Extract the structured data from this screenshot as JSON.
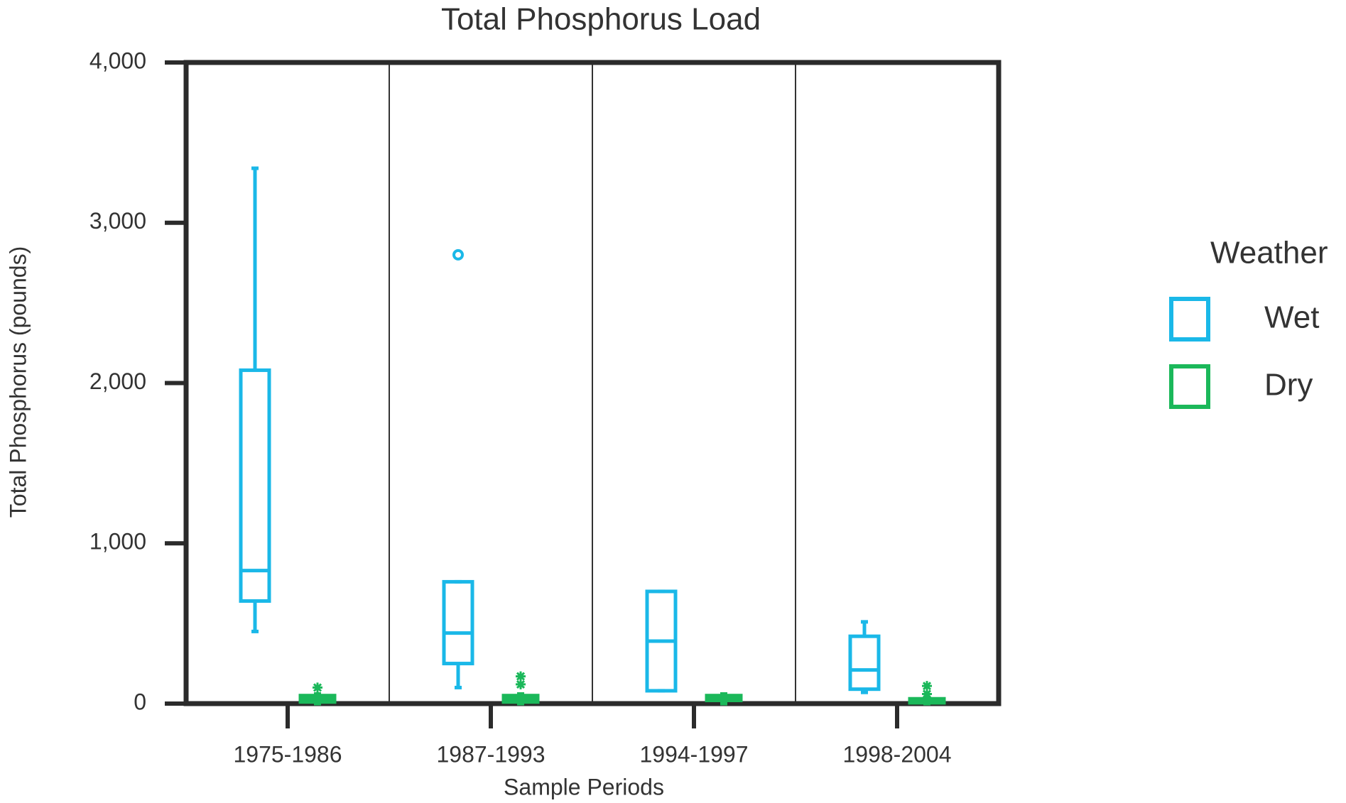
{
  "chart_data": {
    "type": "box",
    "title": "Total Phosphorus Load",
    "x_label": "Sample Periods",
    "y_label": "Total Phosphorus (pounds)",
    "categories": [
      "1975-1986",
      "1987-1993",
      "1994-1997",
      "1998-2004"
    ],
    "ylim": [
      0,
      4000
    ],
    "yticks": [
      0,
      {
        "value": 1000,
        "label": "1,000"
      },
      {
        "value": 2000,
        "label": "2,000"
      },
      {
        "value": 3000,
        "label": "3,000"
      },
      {
        "value": 4000,
        "label": "4,000"
      }
    ],
    "legend_title": "Weather",
    "legend_position": "right",
    "series": [
      {
        "name": "Wet",
        "color": "#1ab8e8",
        "outlier_marker": "circle",
        "boxes": [
          {
            "low": 450,
            "q1": 640,
            "median": 830,
            "q3": 2080,
            "high": 3340,
            "outliers": []
          },
          {
            "low": 100,
            "q1": 250,
            "median": 440,
            "q3": 760,
            "high": 760,
            "outliers": [
              2800
            ]
          },
          {
            "low": 80,
            "q1": 80,
            "median": 390,
            "q3": 700,
            "high": 700,
            "outliers": []
          },
          {
            "low": 70,
            "q1": 90,
            "median": 210,
            "q3": 420,
            "high": 510,
            "outliers": []
          }
        ]
      },
      {
        "name": "Dry",
        "color": "#1bb85a",
        "outlier_marker": "asterisk",
        "boxes": [
          {
            "low": 0,
            "q1": 10,
            "median": 30,
            "q3": 50,
            "high": 60,
            "outliers": [
              100
            ]
          },
          {
            "low": 0,
            "q1": 10,
            "median": 30,
            "q3": 50,
            "high": 60,
            "outliers": [
              120,
              170
            ]
          },
          {
            "low": 0,
            "q1": 20,
            "median": 40,
            "q3": 50,
            "high": 60,
            "outliers": []
          },
          {
            "low": 0,
            "q1": 5,
            "median": 15,
            "q3": 30,
            "high": 40,
            "outliers": [
              60,
              110
            ]
          }
        ]
      }
    ]
  }
}
